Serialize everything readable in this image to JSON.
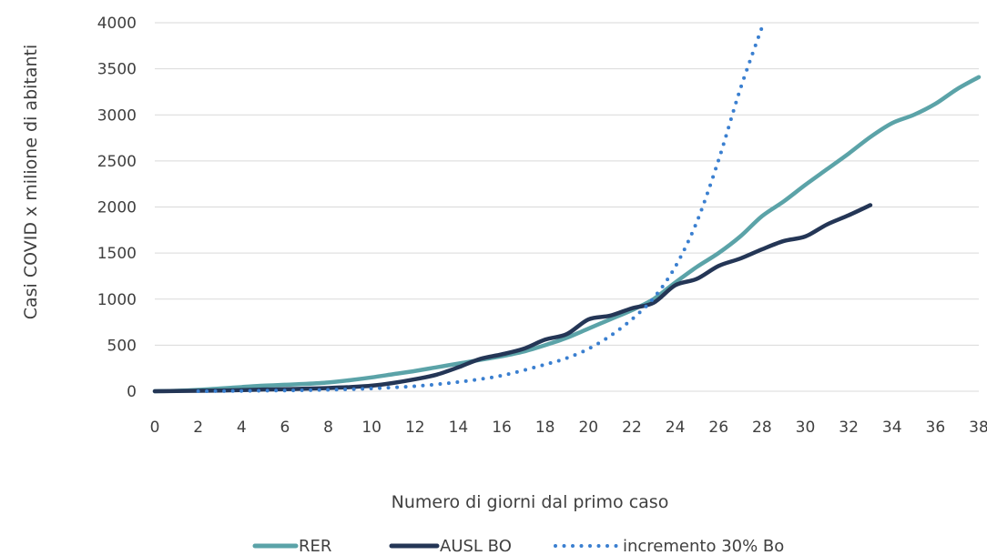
{
  "chart_data": {
    "type": "line",
    "title": "",
    "xlabel": "Numero di giorni dal primo caso",
    "ylabel": "Casi COVID  x  milione di abitanti",
    "xlim": [
      0,
      38
    ],
    "ylim": [
      0,
      4000
    ],
    "x_ticks": [
      "0",
      "2",
      "4",
      "6",
      "8",
      "10",
      "12",
      "14",
      "16",
      "18",
      "20",
      "22",
      "24",
      "26",
      "28",
      "30",
      "32",
      "34",
      "36",
      "38"
    ],
    "y_ticks": [
      "0",
      "500",
      "1000",
      "1500",
      "2000",
      "2500",
      "3000",
      "3500",
      "4000"
    ],
    "grid": "horizontal",
    "legend_position": "bottom",
    "series": [
      {
        "name": "RER",
        "color": "#5ba3a8",
        "style": "solid",
        "x": [
          0,
          1,
          2,
          3,
          4,
          5,
          6,
          7,
          8,
          9,
          10,
          11,
          12,
          13,
          14,
          15,
          16,
          17,
          18,
          19,
          20,
          21,
          22,
          23,
          24,
          25,
          26,
          27,
          28,
          29,
          30,
          31,
          32,
          33,
          34,
          35,
          36,
          37,
          38
        ],
        "values": [
          0,
          5,
          15,
          30,
          45,
          60,
          70,
          80,
          95,
          120,
          150,
          185,
          220,
          260,
          300,
          340,
          380,
          430,
          500,
          580,
          680,
          780,
          880,
          1000,
          1180,
          1350,
          1500,
          1680,
          1900,
          2060,
          2240,
          2410,
          2580,
          2760,
          2910,
          3000,
          3120,
          3280,
          3410
        ]
      },
      {
        "name": "AUSL BO",
        "color": "#243656",
        "style": "solid",
        "x": [
          0,
          1,
          2,
          3,
          4,
          5,
          6,
          7,
          8,
          9,
          10,
          11,
          12,
          13,
          14,
          15,
          16,
          17,
          18,
          19,
          20,
          21,
          22,
          23,
          24,
          25,
          26,
          27,
          28,
          29,
          30,
          31,
          32,
          33
        ],
        "values": [
          0,
          2,
          5,
          8,
          12,
          18,
          22,
          28,
          35,
          45,
          60,
          90,
          130,
          180,
          260,
          350,
          400,
          460,
          560,
          620,
          780,
          820,
          900,
          960,
          1150,
          1220,
          1360,
          1440,
          1540,
          1630,
          1680,
          1810,
          1910,
          2020
        ]
      },
      {
        "name": "incremento 30% Bo",
        "color": "#3a7fd0",
        "style": "dotted",
        "x": [
          2,
          4,
          6,
          8,
          10,
          12,
          14,
          16,
          18,
          19,
          20,
          21,
          22,
          23,
          24,
          25,
          26,
          27,
          28
        ],
        "values": [
          0,
          3,
          8,
          15,
          30,
          55,
          100,
          170,
          290,
          360,
          460,
          600,
          780,
          1010,
          1350,
          1840,
          2510,
          3280,
          3950
        ]
      }
    ]
  }
}
